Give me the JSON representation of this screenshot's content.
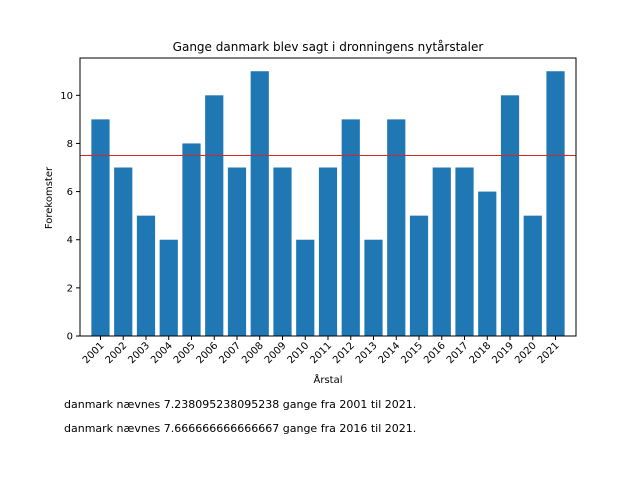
{
  "chart_data": {
    "type": "bar",
    "title": "Gange danmark blev sagt i dronningens nytårstaler",
    "xlabel": "Årstal",
    "ylabel": "Forekomster",
    "categories": [
      "2001",
      "2002",
      "2003",
      "2004",
      "2005",
      "2006",
      "2007",
      "2008",
      "2009",
      "2010",
      "2011",
      "2012",
      "2013",
      "2014",
      "2015",
      "2016",
      "2017",
      "2018",
      "2019",
      "2020",
      "2021"
    ],
    "values": [
      9,
      7,
      5,
      4,
      8,
      10,
      7,
      11,
      7,
      4,
      7,
      9,
      4,
      9,
      5,
      7,
      7,
      6,
      10,
      5,
      11
    ],
    "ylim": [
      0,
      11.55
    ],
    "yticks": [
      0,
      2,
      4,
      6,
      8,
      10
    ],
    "bar_color": "#1f77b4",
    "reference_line": {
      "value": 7.5,
      "color": "#d62728"
    },
    "grid": false
  },
  "notes": [
    "danmark nævnes 7.238095238095238 gange fra 2001 til 2021.",
    "danmark nævnes 7.666666666666667 gange fra 2016 til 2021."
  ]
}
